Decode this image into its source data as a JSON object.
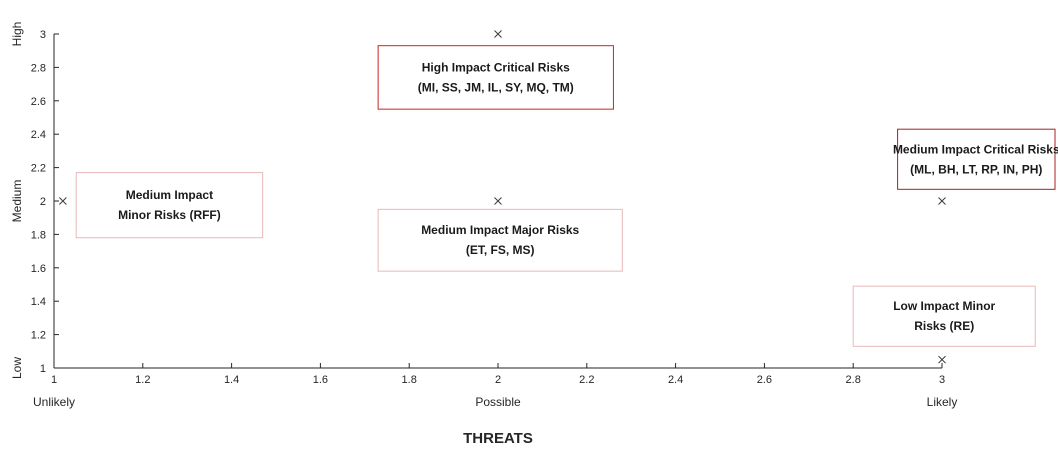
{
  "chart_data": {
    "type": "scatter",
    "title": "",
    "xlabel": "THREATS",
    "ylabel": "",
    "xlim": [
      1,
      3
    ],
    "ylim": [
      1,
      3
    ],
    "xticks": [
      1,
      1.2,
      1.4,
      1.6,
      1.8,
      2,
      2.2,
      2.4,
      2.6,
      2.8,
      3
    ],
    "yticks": [
      1,
      1.2,
      1.4,
      1.6,
      1.8,
      2,
      2.2,
      2.4,
      2.6,
      2.8,
      3
    ],
    "x_level_labels": [
      {
        "x": 1,
        "label": "Unlikely"
      },
      {
        "x": 2,
        "label": "Possible"
      },
      {
        "x": 3,
        "label": "Likely"
      }
    ],
    "y_level_labels": [
      {
        "y": 1,
        "label": "Low"
      },
      {
        "y": 2,
        "label": "Medium"
      },
      {
        "y": 3,
        "label": "High"
      }
    ],
    "points": [
      {
        "x": 1.02,
        "y": 2
      },
      {
        "x": 2,
        "y": 3
      },
      {
        "x": 2,
        "y": 2
      },
      {
        "x": 3,
        "y": 2
      },
      {
        "x": 3,
        "y": 1.05
      }
    ],
    "grid": false,
    "annotations": [
      {
        "lines": [
          "Medium Impact",
          "Minor Risks (RFF)"
        ],
        "border": "#e8b8b8",
        "anchor": [
          1.05,
          1.78,
          1.47,
          2.17
        ]
      },
      {
        "lines": [
          "High Impact Critical Risks",
          "(MI, SS, JM, IL, SY, MQ, TM)"
        ],
        "border": "#cc2222",
        "anchor": [
          1.73,
          2.55,
          2.26,
          2.93
        ]
      },
      {
        "lines": [
          "Medium Impact Major Risks",
          "(ET, FS, MS)"
        ],
        "border": "#e8b8b8",
        "anchor": [
          1.73,
          1.58,
          2.28,
          1.95
        ]
      },
      {
        "lines": [
          "Medium Impact Critical Risks",
          "(ML, BH, LT, RP, IN, PH)"
        ],
        "border": "#a82020",
        "anchor": [
          2.9,
          2.07,
          3.42,
          2.43
        ]
      },
      {
        "lines": [
          "Low Impact Minor",
          "Risks (RE)"
        ],
        "border": "#e8b8b8",
        "anchor": [
          2.8,
          1.13,
          3.21,
          1.49
        ]
      }
    ]
  }
}
